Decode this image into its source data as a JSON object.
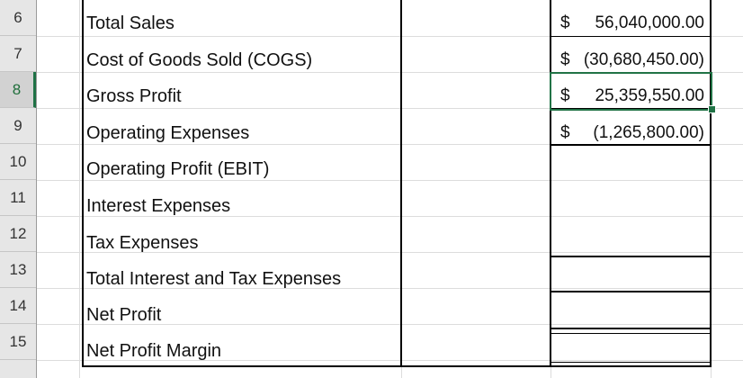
{
  "rows": [
    {
      "number": "6",
      "label": "Total Sales",
      "currency": "$",
      "amount": "56,040,000.00"
    },
    {
      "number": "7",
      "label": "Cost of Goods Sold (COGS)",
      "currency": "$",
      "amount": "(30,680,450.00)"
    },
    {
      "number": "8",
      "label": "Gross Profit",
      "currency": "$",
      "amount": "25,359,550.00"
    },
    {
      "number": "9",
      "label": "Operating Expenses",
      "currency": "$",
      "amount": "(1,265,800.00)"
    },
    {
      "number": "10",
      "label": "Operating Profit (EBIT)",
      "currency": "",
      "amount": ""
    },
    {
      "number": "11",
      "label": "Interest Expenses",
      "currency": "",
      "amount": ""
    },
    {
      "number": "12",
      "label": "Tax Expenses",
      "currency": "",
      "amount": ""
    },
    {
      "number": "13",
      "label": "Total Interest and Tax Expenses",
      "currency": "",
      "amount": ""
    },
    {
      "number": "14",
      "label": "Net Profit",
      "currency": "",
      "amount": ""
    },
    {
      "number": "15",
      "label": "Net Profit Margin",
      "currency": "",
      "amount": ""
    }
  ],
  "selection": {
    "active_row": "8"
  },
  "colors": {
    "selection": "#217346",
    "header_bg": "#e6e6e6"
  }
}
